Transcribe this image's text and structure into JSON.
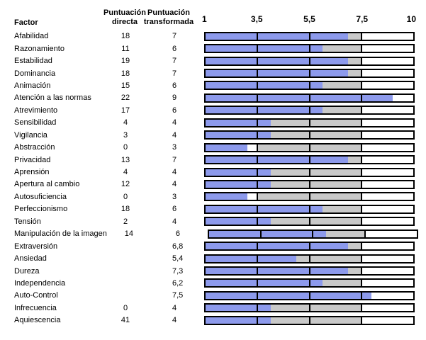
{
  "header": {
    "factor": "Factor",
    "directa_line1": "Puntuación",
    "directa_line2": "directa",
    "transformada_line1": "Puntuación",
    "transformada_line2": "transformada"
  },
  "scale": {
    "ticks": [
      "1",
      "3,5",
      "5,5",
      "7,5",
      "10"
    ]
  },
  "colors": {
    "bar_fill": "#8d9aec",
    "average_band": "#c9c9c9",
    "bar_border": "#000000",
    "background": "#ffffff"
  },
  "rows": [
    {
      "factor": "Afabilidad",
      "directa": "18",
      "transformada": "7",
      "value": 7
    },
    {
      "factor": "Razonamiento",
      "directa": "11",
      "transformada": "6",
      "value": 6
    },
    {
      "factor": "Estabilidad",
      "directa": "19",
      "transformada": "7",
      "value": 7
    },
    {
      "factor": "Dominancia",
      "directa": "18",
      "transformada": "7",
      "value": 7
    },
    {
      "factor": "Animación",
      "directa": "15",
      "transformada": "6",
      "value": 6
    },
    {
      "factor": "Atención a las normas",
      "directa": "22",
      "transformada": "9",
      "value": 9
    },
    {
      "factor": "Atrevimiento",
      "directa": "17",
      "transformada": "6",
      "value": 6
    },
    {
      "factor": "Sensibilidad",
      "directa": "4",
      "transformada": "4",
      "value": 4
    },
    {
      "factor": "Vigilancia",
      "directa": "3",
      "transformada": "4",
      "value": 4
    },
    {
      "factor": "Abstracción",
      "directa": "0",
      "transformada": "3",
      "value": 3
    },
    {
      "factor": "Privacidad",
      "directa": "13",
      "transformada": "7",
      "value": 7
    },
    {
      "factor": "Aprensión",
      "directa": "4",
      "transformada": "4",
      "value": 4
    },
    {
      "factor": "Apertura al cambio",
      "directa": "12",
      "transformada": "4",
      "value": 4
    },
    {
      "factor": "Autosuficiencia",
      "directa": "0",
      "transformada": "3",
      "value": 3
    },
    {
      "factor": "Perfeccionismo",
      "directa": "18",
      "transformada": "6",
      "value": 6
    },
    {
      "factor": "Tensión",
      "directa": "2",
      "transformada": "4",
      "value": 4
    },
    {
      "factor": "Manipulación de la imagen",
      "directa": "14",
      "transformada": "6",
      "value": 6
    },
    {
      "factor": "Extraversión",
      "directa": "",
      "transformada": "6,8",
      "value": 6.8
    },
    {
      "factor": "Ansiedad",
      "directa": "",
      "transformada": "5,4",
      "value": 5.4
    },
    {
      "factor": "Dureza",
      "directa": "",
      "transformada": "7,3",
      "value": 7.3
    },
    {
      "factor": "Independencia",
      "directa": "",
      "transformada": "6,2",
      "value": 6.2
    },
    {
      "factor": "Auto-Control",
      "directa": "",
      "transformada": "7,5",
      "value": 7.5
    },
    {
      "factor": "Infrecuencia",
      "directa": "0",
      "transformada": "4",
      "value": 4
    },
    {
      "factor": "Aquiescencia",
      "directa": "41",
      "transformada": "4",
      "value": 4
    }
  ],
  "chart_data": {
    "type": "bar",
    "orientation": "horizontal",
    "title": "",
    "categories": [
      "Afabilidad",
      "Razonamiento",
      "Estabilidad",
      "Dominancia",
      "Animación",
      "Atención a las normas",
      "Atrevimiento",
      "Sensibilidad",
      "Vigilancia",
      "Abstracción",
      "Privacidad",
      "Aprensión",
      "Apertura al cambio",
      "Autosuficiencia",
      "Perfeccionismo",
      "Tensión",
      "Manipulación de la imagen",
      "Extraversión",
      "Ansiedad",
      "Dureza",
      "Independencia",
      "Auto-Control",
      "Infrecuencia",
      "Aquiescencia"
    ],
    "series": [
      {
        "name": "Puntuación directa",
        "values": [
          18,
          11,
          19,
          18,
          15,
          22,
          17,
          4,
          3,
          0,
          13,
          4,
          12,
          0,
          18,
          2,
          14,
          null,
          null,
          null,
          null,
          null,
          0,
          41
        ]
      },
      {
        "name": "Puntuación transformada",
        "values": [
          7,
          6,
          7,
          7,
          6,
          9,
          6,
          4,
          4,
          3,
          7,
          4,
          4,
          3,
          6,
          4,
          6,
          6.8,
          5.4,
          7.3,
          6.2,
          7.5,
          4,
          4
        ]
      }
    ],
    "bar_series_plotted": "Puntuación transformada",
    "xlabel": "",
    "ylabel": "Factor",
    "xlim": [
      1,
      10
    ],
    "xticks": [
      1,
      3.5,
      5.5,
      7.5,
      10
    ],
    "xtick_labels": [
      "1",
      "3,5",
      "5,5",
      "7,5",
      "10"
    ],
    "tick_spacing": "equal-width cells between ticks",
    "average_band": [
      3.5,
      7.5
    ],
    "grid": false,
    "legend": false,
    "notes": "Bars drawn from 1 to the transformed score (rounded to nearest integer); band between 3.5 and 7.5 shaded grey"
  }
}
